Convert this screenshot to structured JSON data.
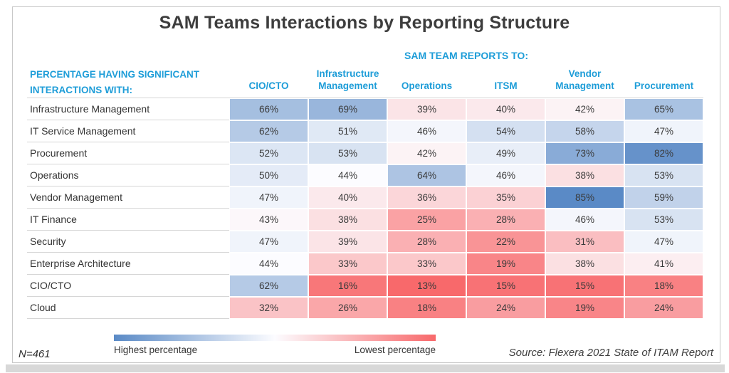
{
  "title": "SAM Teams Interactions by Reporting Structure",
  "header": {
    "group_label": "SAM TEAM REPORTS TO:",
    "row_header_line1": "PERCENTAGE HAVING SIGNIFICANT",
    "row_header_line2": "INTERACTIONS WITH:"
  },
  "chart_data": {
    "type": "heatmap",
    "title": "SAM Teams Interactions by Reporting Structure",
    "columns": [
      "CIO/CTO",
      "Infrastructure Management",
      "Operations",
      "ITSM",
      "Vendor Management",
      "Procurement"
    ],
    "rows": [
      "Infrastructure Management",
      "IT Service Management",
      "Procurement",
      "Operations",
      "Vendor Management",
      "IT Finance",
      "Security",
      "Enterprise Architecture",
      "CIO/CTO",
      "Cloud"
    ],
    "values": [
      [
        66,
        69,
        39,
        40,
        42,
        65
      ],
      [
        62,
        51,
        46,
        54,
        58,
        47
      ],
      [
        52,
        53,
        42,
        49,
        73,
        82
      ],
      [
        50,
        44,
        64,
        46,
        38,
        53
      ],
      [
        47,
        40,
        36,
        35,
        85,
        59
      ],
      [
        43,
        38,
        25,
        28,
        46,
        53
      ],
      [
        47,
        39,
        28,
        22,
        31,
        47
      ],
      [
        44,
        33,
        33,
        19,
        38,
        41
      ],
      [
        62,
        16,
        13,
        15,
        15,
        18
      ],
      [
        32,
        26,
        18,
        24,
        19,
        24
      ]
    ],
    "unit": "%",
    "colormap": {
      "min_value": 13,
      "mid_value": 44,
      "max_value": 85,
      "min_color": "#F8696B",
      "mid_color": "#FCFCFF",
      "max_color": "#5A8AC6",
      "high_meaning": "Highest percentage",
      "low_meaning": "Lowest percentage"
    },
    "legend_position": "bottom"
  },
  "legend": {
    "left_label": "Highest percentage",
    "right_label": "Lowest percentage"
  },
  "footer": {
    "n_label": "N=461",
    "source": "Source: Flexera 2021 State of ITAM Report"
  },
  "colors": {
    "accent_blue": "#1e9dd8",
    "title_text": "#3d3d3d",
    "scale_high": "#5A8AC6",
    "scale_mid": "#FCFCFF",
    "scale_low": "#F8696B"
  }
}
